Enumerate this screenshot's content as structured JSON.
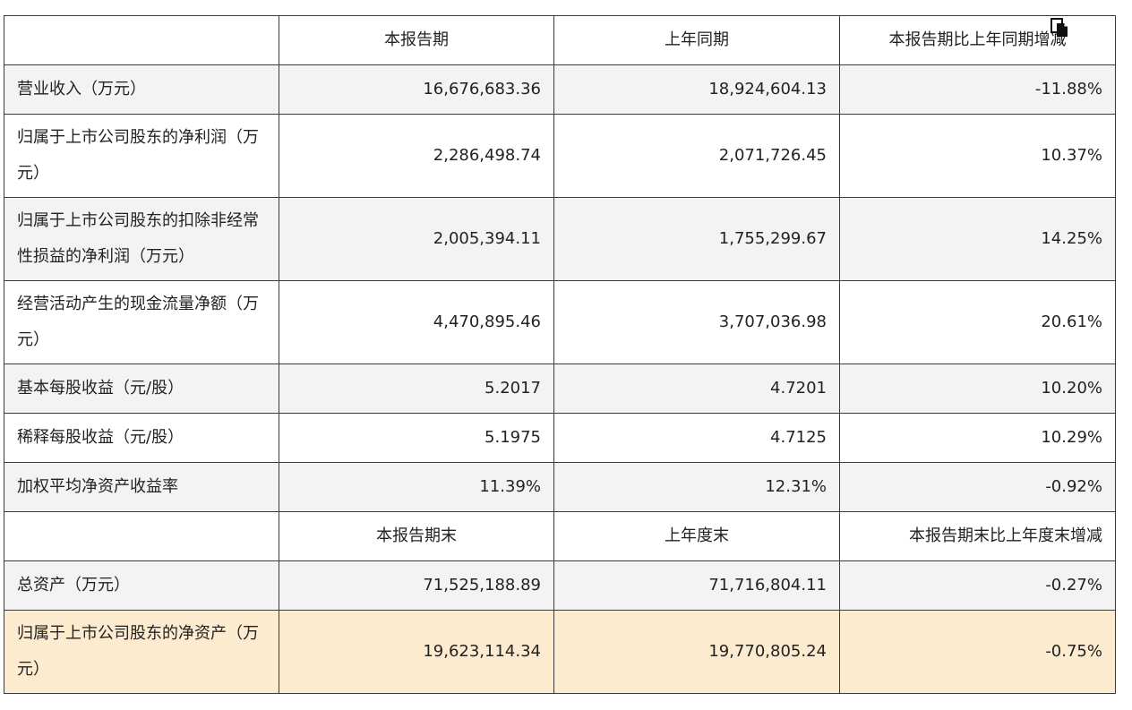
{
  "table": {
    "header1": {
      "col1": "本报告期",
      "col2": "上年同期",
      "col3": "本报告期比上年同期增减"
    },
    "rows1": [
      {
        "label": "营业收入（万元）",
        "v1": "16,676,683.36",
        "v2": "18,924,604.13",
        "v3": "-11.88%"
      },
      {
        "label": "归属于上市公司股东的净利润（万元）",
        "v1": "2,286,498.74",
        "v2": "2,071,726.45",
        "v3": "10.37%"
      },
      {
        "label": "归属于上市公司股东的扣除非经常性损益的净利润（万元）",
        "v1": "2,005,394.11",
        "v2": "1,755,299.67",
        "v3": "14.25%"
      },
      {
        "label": "经营活动产生的现金流量净额（万元）",
        "v1": "4,470,895.46",
        "v2": "3,707,036.98",
        "v3": "20.61%"
      },
      {
        "label": "基本每股收益（元/股）",
        "v1": "5.2017",
        "v2": "4.7201",
        "v3": "10.20%"
      },
      {
        "label": "稀释每股收益（元/股）",
        "v1": "5.1975",
        "v2": "4.7125",
        "v3": "10.29%"
      },
      {
        "label": "加权平均净资产收益率",
        "v1": "11.39%",
        "v2": "12.31%",
        "v3": "-0.92%"
      }
    ],
    "header2": {
      "col1": "本报告期末",
      "col2": "上年度末",
      "col3": "本报告期末比上年度末增减"
    },
    "rows2": [
      {
        "label": "总资产（万元）",
        "v1": "71,525,188.89",
        "v2": "71,716,804.11",
        "v3": "-0.27%"
      },
      {
        "label": "归属于上市公司股东的净资产（万元）",
        "v1": "19,623,114.34",
        "v2": "19,770,805.24",
        "v3": "-0.75%"
      }
    ]
  },
  "icons": {
    "copy": "copy-icon"
  },
  "colors": {
    "row_shade": "#f3f3f3",
    "row_highlight": "#fdebd0",
    "border": "#3a3a3a"
  }
}
